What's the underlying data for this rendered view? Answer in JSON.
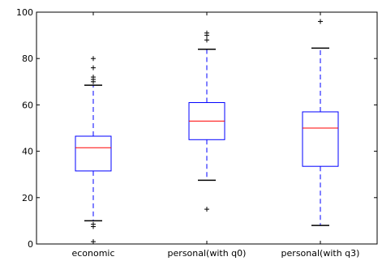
{
  "chart_data": {
    "type": "boxplot",
    "categories": [
      "economic",
      "personal(with q0)",
      "personal(with q3)"
    ],
    "ylim": [
      0,
      100
    ],
    "yticks": [
      0,
      20,
      40,
      60,
      80,
      100
    ],
    "grid": false,
    "boxes": [
      {
        "category": "economic",
        "whisker_low": 10,
        "q1": 31.5,
        "median": 41.5,
        "q3": 46.5,
        "whisker_high": 68.5,
        "outliers": [
          1,
          7.5,
          8.5,
          70,
          71,
          72,
          76,
          80
        ]
      },
      {
        "category": "personal(with q0)",
        "whisker_low": 27.5,
        "q1": 45,
        "median": 53,
        "q3": 61,
        "whisker_high": 84,
        "outliers": [
          15,
          88,
          90,
          91
        ]
      },
      {
        "category": "personal(with q3)",
        "whisker_low": 8,
        "q1": 33.5,
        "median": 50,
        "q3": 57,
        "whisker_high": 84.5,
        "outliers": [
          96
        ]
      }
    ],
    "colors": {
      "box": "#0000ff",
      "median": "#ff0000",
      "whisker": "#0000ff",
      "cap": "#000000",
      "outlier": "#000000"
    }
  }
}
